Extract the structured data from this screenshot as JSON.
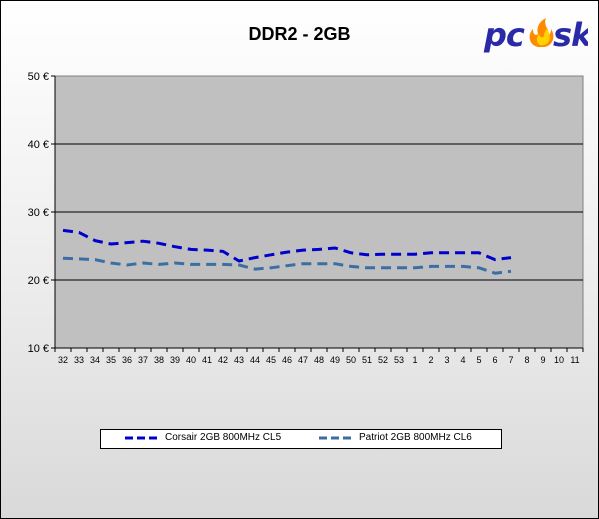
{
  "chart_data": {
    "type": "line",
    "title": "DDR2 - 2GB",
    "categories": [
      "32",
      "33",
      "34",
      "35",
      "36",
      "37",
      "38",
      "39",
      "40",
      "41",
      "42",
      "43",
      "44",
      "45",
      "46",
      "47",
      "48",
      "49",
      "50",
      "51",
      "52",
      "53",
      "1",
      "2",
      "3",
      "4",
      "5",
      "6",
      "7",
      "8",
      "9",
      "10",
      "11"
    ],
    "y_ticks": [
      "10 €",
      "20 €",
      "30 €",
      "40 €",
      "50 €"
    ],
    "ylim": [
      10,
      50
    ],
    "grid": true,
    "plot_background": "#c0c0c0",
    "legend_position": "bottom",
    "series": [
      {
        "name": "Corsair 2GB 800MHz CL5",
        "color": "#0000cc",
        "values": [
          27.3,
          27.0,
          25.8,
          25.3,
          25.5,
          25.7,
          25.4,
          24.9,
          24.5,
          24.4,
          24.2,
          22.8,
          23.3,
          23.7,
          24.1,
          24.4,
          24.5,
          24.7,
          24.0,
          23.7,
          23.8,
          23.8,
          23.8,
          24.0,
          24.0,
          24.0,
          24.0,
          23.0,
          23.3,
          null,
          null,
          null,
          null
        ]
      },
      {
        "name": "Patriot 2GB 800MHz CL6",
        "color": "#3a6ea5",
        "values": [
          23.2,
          23.1,
          23.0,
          22.5,
          22.2,
          22.5,
          22.3,
          22.5,
          22.3,
          22.3,
          22.3,
          22.2,
          21.6,
          21.8,
          22.1,
          22.4,
          22.4,
          22.4,
          22.0,
          21.8,
          21.8,
          21.8,
          21.8,
          22.0,
          22.0,
          22.0,
          21.8,
          21.0,
          21.3,
          null,
          null,
          null,
          null
        ]
      }
    ]
  },
  "logo": {
    "text": "pcsk",
    "color": "#2a2aa8",
    "flame_color": "#ff8a00"
  }
}
